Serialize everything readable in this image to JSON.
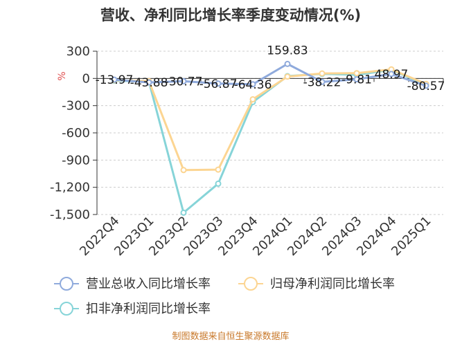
{
  "chart_data": {
    "type": "line",
    "title": "营收、净利同比增长率季度变动情况(%)",
    "ylabel": "%",
    "categories": [
      "2022Q4",
      "2023Q1",
      "2023Q2",
      "2023Q3",
      "2023Q4",
      "2024Q1",
      "2024Q2",
      "2024Q3",
      "2024Q4",
      "2025Q1"
    ],
    "ylim": [
      -1500,
      300
    ],
    "yticks": [
      300,
      0,
      -300,
      -600,
      -900,
      -1200,
      -1500
    ],
    "ytick_labels": [
      "300",
      "0",
      "-300",
      "-600",
      "-900",
      "-1,200",
      "-1,500"
    ],
    "grid": true,
    "legend_position": "bottom",
    "series": [
      {
        "name": "营业总收入同比增长率",
        "color": "#8faadc",
        "values": [
          -13.97,
          -43.88,
          -30.77,
          -56.87,
          -64.36,
          159.83,
          -38.22,
          -9.81,
          48.97,
          -80.57
        ],
        "labels": [
          "-13.97",
          "-43.88",
          "-30.77",
          "-56.87",
          "-64.36",
          "159.83",
          "-38.22",
          "-9.81",
          "48.97",
          "-80.57"
        ]
      },
      {
        "name": "归母净利润同比增长率",
        "color": "#fcd592",
        "values": [
          -20,
          -30,
          -1010,
          -1005,
          -230,
          20,
          55,
          58,
          100,
          -60
        ]
      },
      {
        "name": "扣非净利润同比增长率",
        "color": "#86d4d8",
        "values": [
          -25,
          -35,
          -1480,
          -1160,
          -260,
          25,
          50,
          40,
          95,
          -70
        ]
      }
    ]
  },
  "source": "制图数据来自恒生聚源数据库"
}
